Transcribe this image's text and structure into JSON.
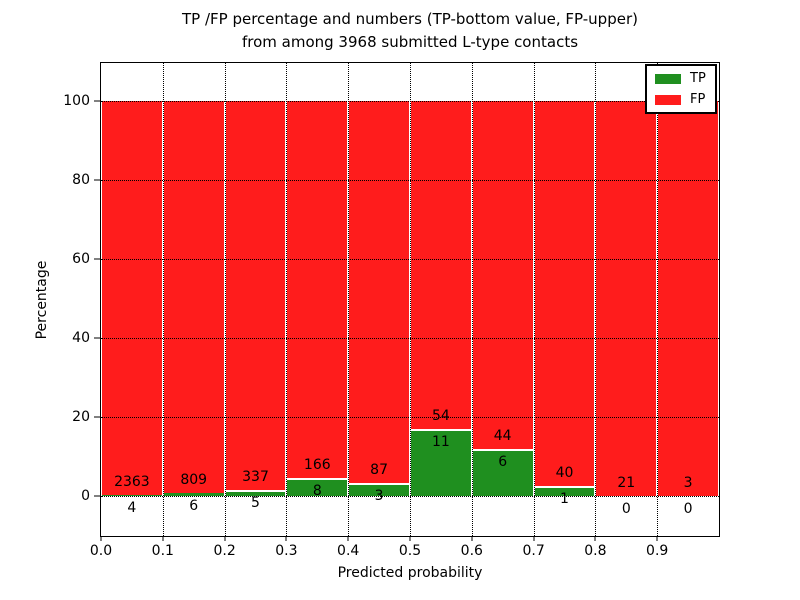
{
  "title": {
    "line1": "TP /FP percentage and numbers (TP-bottom value, FP-upper)",
    "line2": "from among 3968 submitted L-type contacts"
  },
  "axes": {
    "xlabel": "Predicted probability",
    "ylabel": "Percentage",
    "yticks": [
      0,
      20,
      40,
      60,
      80,
      100
    ],
    "xticks": [
      "0.0",
      "0.1",
      "0.2",
      "0.3",
      "0.4",
      "0.5",
      "0.6",
      "0.7",
      "0.8",
      "0.9"
    ]
  },
  "legend": {
    "entries": [
      {
        "label": "TP",
        "color": "#1f8f1f"
      },
      {
        "label": "FP",
        "color": "#ff1c1c"
      }
    ]
  },
  "colors": {
    "tp_green": "#1f8f1f",
    "fp_red": "#ff1c1c",
    "bar_edge": "#ffffff",
    "grid": "#000000",
    "background": "#ffffff"
  },
  "chart_data": {
    "type": "bar",
    "stacked": true,
    "percent_normalized_per_bin": true,
    "title": "TP /FP percentage and numbers (TP-bottom value, FP-upper) from among 3968 submitted L-type contacts",
    "xlabel": "Predicted probability",
    "ylabel": "Percentage",
    "total_contacts": 3968,
    "bin_starts": [
      0.0,
      0.1,
      0.2,
      0.3,
      0.4,
      0.5,
      0.6,
      0.7,
      0.8,
      0.9
    ],
    "bin_width": 0.1,
    "series": [
      {
        "name": "TP",
        "counts": [
          4,
          6,
          5,
          8,
          3,
          11,
          6,
          1,
          0,
          0
        ]
      },
      {
        "name": "FP",
        "counts": [
          2363,
          809,
          337,
          166,
          87,
          54,
          44,
          40,
          21,
          3
        ]
      }
    ],
    "tp_percent_of_bin": [
      0.17,
      0.74,
      1.46,
      4.6,
      3.33,
      16.92,
      12.0,
      2.44,
      0.0,
      0.0
    ],
    "xlim": [
      0.0,
      1.0
    ],
    "ylim": [
      -10.1,
      109.7
    ],
    "grid": true,
    "legend_position": "upper right"
  }
}
